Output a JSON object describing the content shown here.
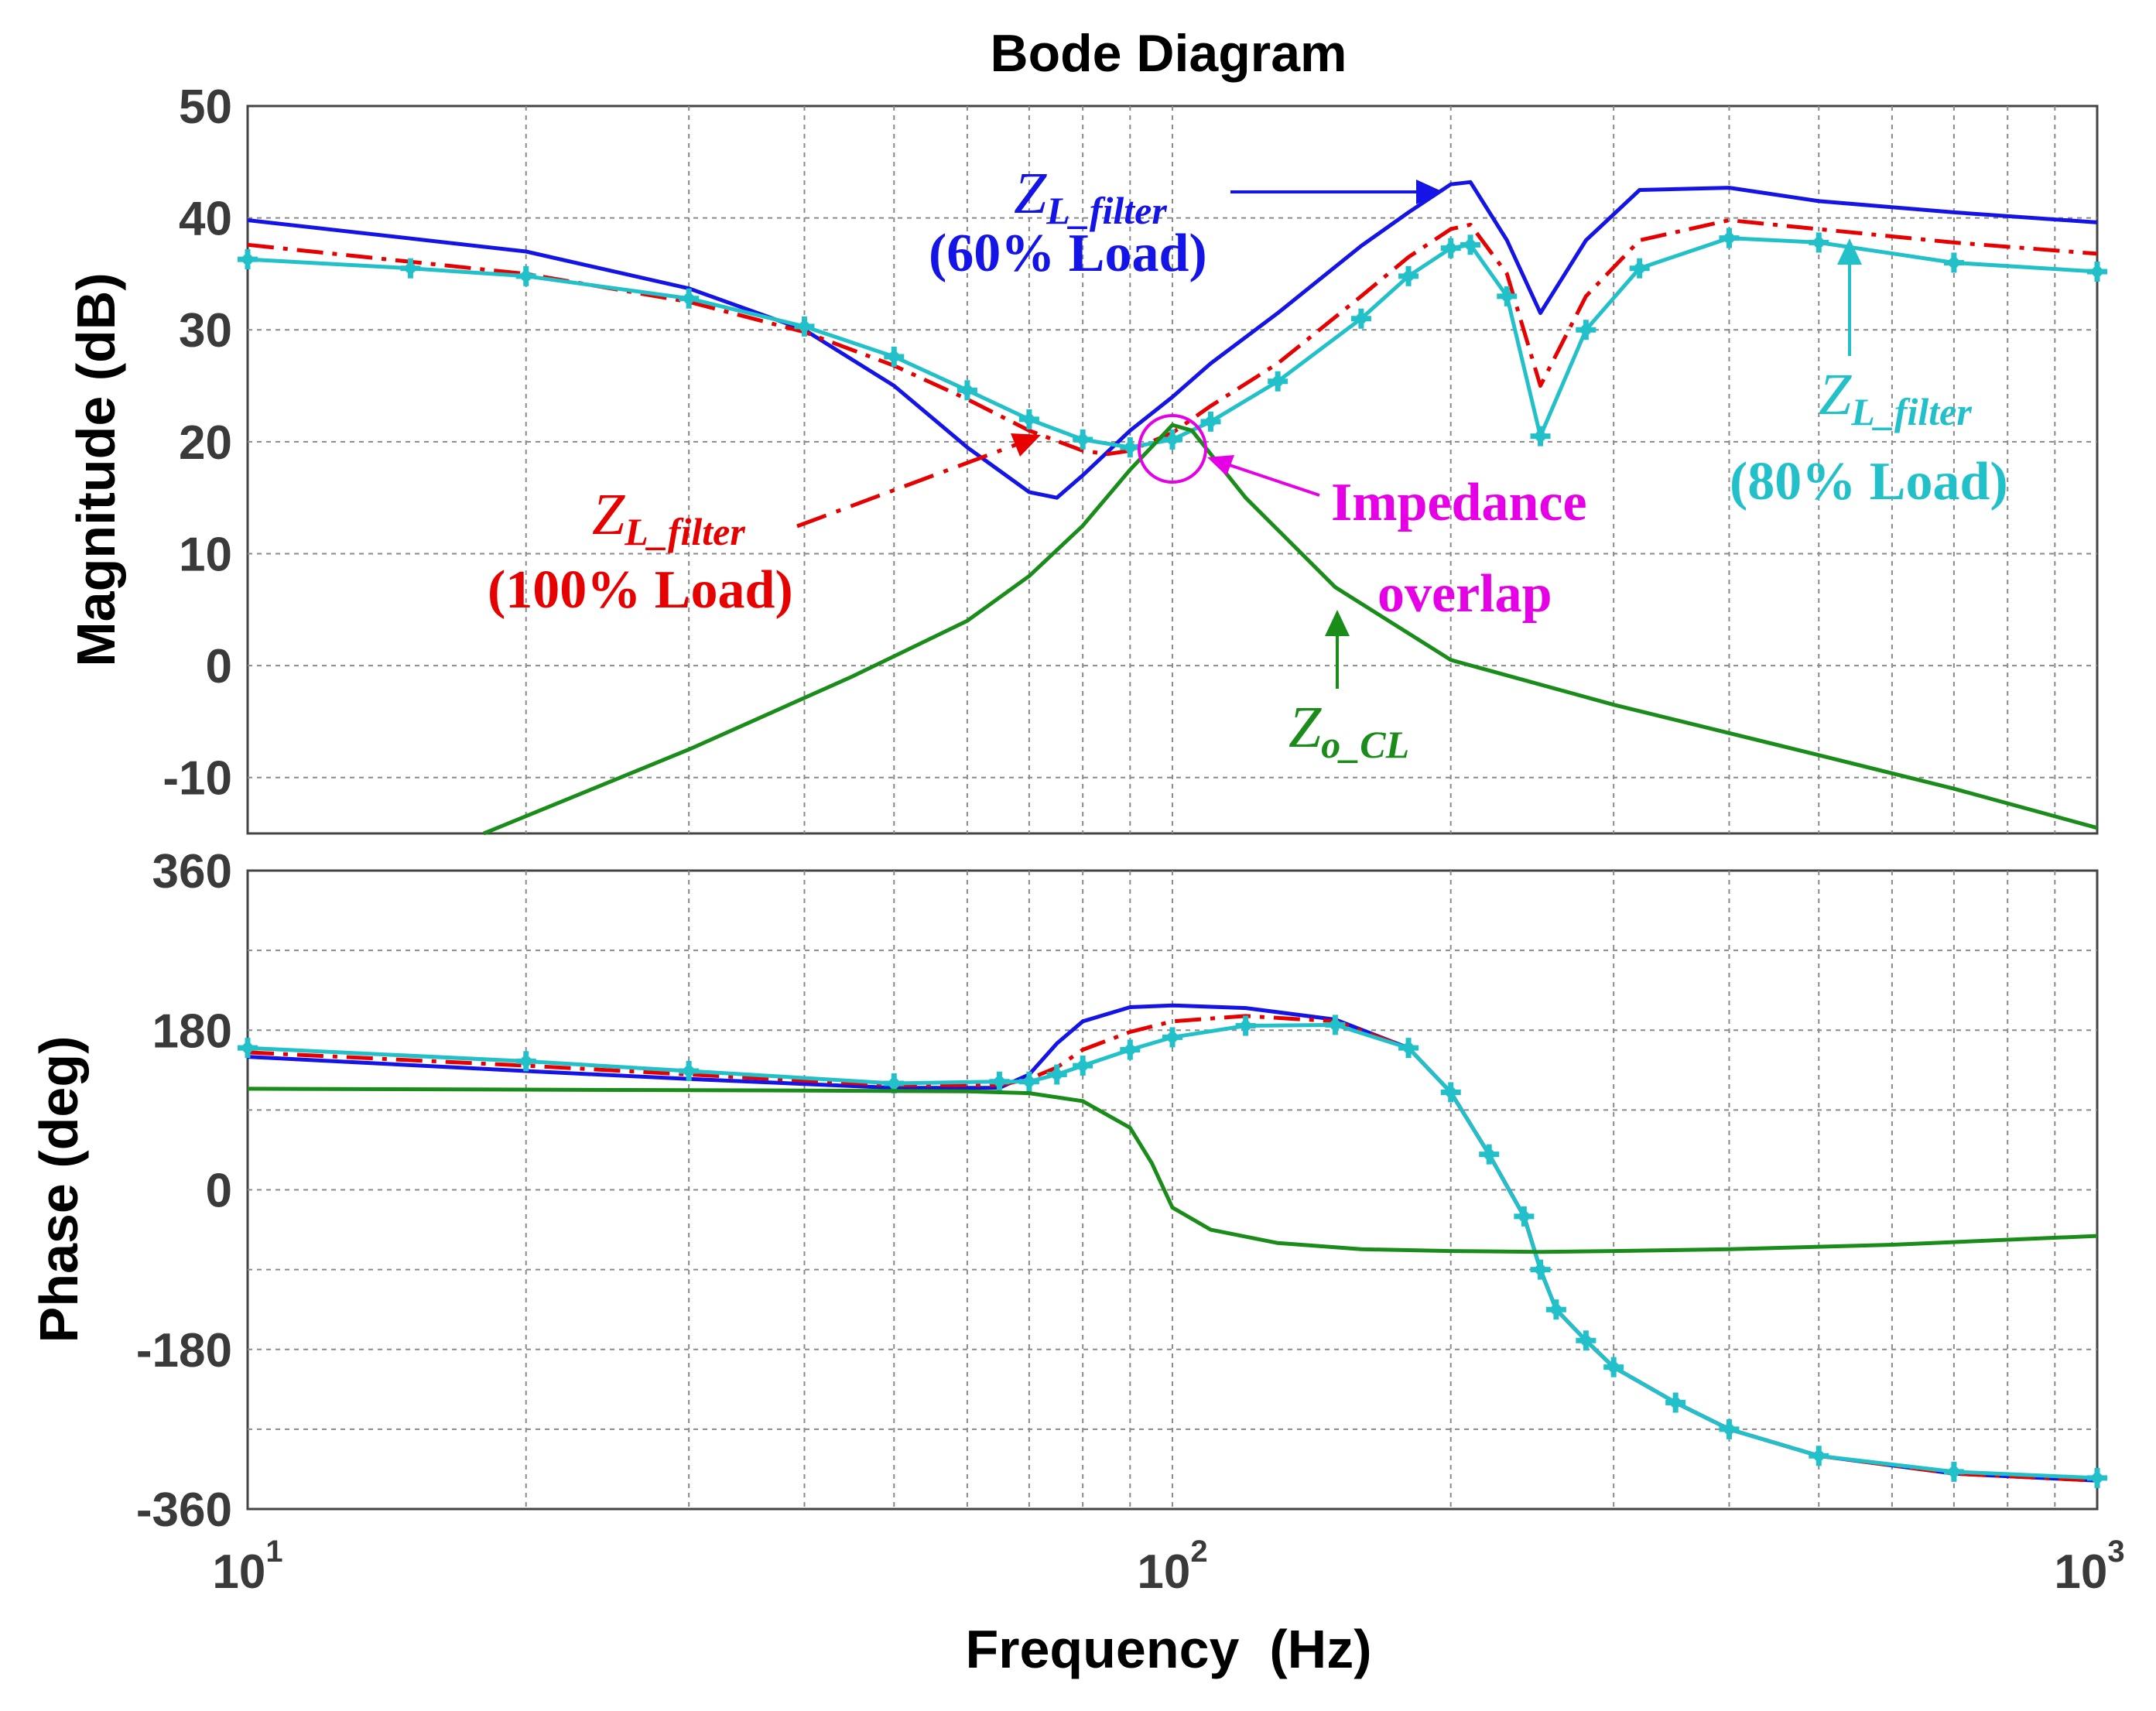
{
  "chart_data": [
    {
      "type": "line",
      "panel": "magnitude",
      "title": "Bode Diagram",
      "xlabel": "",
      "ylabel": "Magnitude (dB)",
      "xscale": "log",
      "xlim": [
        10,
        1000
      ],
      "ylim": [
        -15,
        50
      ],
      "yticks": [
        -10,
        0,
        10,
        20,
        30,
        40,
        50
      ],
      "xticks": [
        10,
        100,
        1000
      ],
      "xtick_labels": [
        {
          "base": "10",
          "exp": "1"
        },
        {
          "base": "10",
          "exp": "2"
        },
        {
          "base": "10",
          "exp": "3"
        }
      ],
      "series": [
        {
          "name": "Z_L_filter (60% Load)",
          "color": "#1414e6",
          "style": "solid",
          "x": [
            10,
            20,
            30,
            40,
            50,
            60,
            70,
            75,
            80,
            90,
            100,
            110,
            130,
            160,
            180,
            200,
            210,
            230,
            250,
            280,
            320,
            400,
            500,
            700,
            1000
          ],
          "y": [
            39.8,
            37.0,
            33.7,
            30.0,
            25.0,
            19.5,
            15.5,
            15.0,
            17.0,
            21.0,
            24.0,
            27.0,
            31.5,
            37.5,
            40.5,
            43.0,
            43.2,
            38.0,
            31.5,
            38.0,
            42.5,
            42.7,
            41.5,
            40.5,
            39.6
          ]
        },
        {
          "name": "Z_L_filter (100% Load)",
          "color": "#e60000",
          "style": "dashdot",
          "x": [
            10,
            20,
            30,
            40,
            50,
            60,
            70,
            80,
            85,
            90,
            100,
            110,
            130,
            160,
            180,
            200,
            210,
            230,
            250,
            280,
            320,
            400,
            500,
            700,
            1000
          ],
          "y": [
            37.6,
            35.0,
            32.5,
            29.8,
            26.8,
            23.8,
            21.0,
            19.2,
            18.9,
            19.2,
            20.8,
            23.2,
            27.0,
            33.0,
            36.5,
            39.0,
            39.4,
            35.0,
            25.0,
            33.0,
            38.0,
            39.8,
            39.0,
            37.8,
            36.8
          ]
        },
        {
          "name": "Z_L_filter (80% Load)",
          "color": "#22c0c8",
          "style": "solid-markers",
          "x": [
            10,
            15,
            20,
            30,
            40,
            50,
            60,
            70,
            80,
            90,
            100,
            110,
            130,
            160,
            180,
            200,
            210,
            230,
            250,
            280,
            320,
            400,
            500,
            700,
            1000
          ],
          "y": [
            36.3,
            35.5,
            34.8,
            32.8,
            30.3,
            27.6,
            24.6,
            22.0,
            20.2,
            19.5,
            20.2,
            21.8,
            25.4,
            31.0,
            34.8,
            37.3,
            37.6,
            33.0,
            20.5,
            30.0,
            35.5,
            38.2,
            37.8,
            36.0,
            35.2
          ]
        },
        {
          "name": "Z_o_CL",
          "color": "#1a8c1a",
          "style": "solid",
          "x": [
            18,
            30,
            45,
            60,
            70,
            80,
            90,
            100,
            105,
            120,
            150,
            200,
            300,
            500,
            700,
            1000
          ],
          "y": [
            -15,
            -7.5,
            -1.0,
            4.0,
            8.0,
            12.5,
            17.5,
            21.5,
            21.0,
            15.0,
            7.0,
            0.5,
            -3.5,
            -8.0,
            -11.0,
            -14.5
          ]
        }
      ],
      "annotations": [
        {
          "sym": "Z",
          "sub": "L_filter",
          "text": "(60% Load)",
          "color": "#1414e6"
        },
        {
          "sym": "Z",
          "sub": "L_filter",
          "text": "(100% Load)",
          "color": "#e60000"
        },
        {
          "sym": "Z",
          "sub": "L_filter",
          "text": "(80% Load)",
          "color": "#22c0c8"
        },
        {
          "sym": "Z",
          "sub": "o_CL",
          "text": "",
          "color": "#1a8c1a"
        },
        {
          "sym": "",
          "sub": "",
          "text": "Impedance overlap",
          "line1": "Impedance",
          "line2": "overlap",
          "color": "#e600e6"
        }
      ]
    },
    {
      "type": "line",
      "panel": "phase",
      "title": "",
      "xlabel": "Frequency  (Hz)",
      "ylabel": "Phase (deg)",
      "xscale": "log",
      "xlim": [
        10,
        1000
      ],
      "ylim": [
        -360,
        360
      ],
      "yticks": [
        -360,
        -180,
        0,
        180,
        360
      ],
      "xticks": [
        10,
        100,
        1000
      ],
      "series": [
        {
          "name": "Z_L_filter (60% Load)",
          "color": "#1414e6",
          "style": "solid",
          "x": [
            10,
            20,
            30,
            50,
            65,
            70,
            75,
            80,
            90,
            100,
            120,
            150,
            180,
            200,
            220,
            240,
            250,
            260,
            280,
            300,
            350,
            400,
            500,
            700,
            1000
          ],
          "y": [
            150,
            134,
            125,
            115,
            115,
            130,
            165,
            190,
            206,
            208,
            205,
            192,
            160,
            110,
            40,
            -30,
            -90,
            -135,
            -170,
            -200,
            -240,
            -270,
            -300,
            -320,
            -328
          ]
        },
        {
          "name": "Z_L_filter (100% Load)",
          "color": "#e60000",
          "style": "dashdot",
          "x": [
            10,
            20,
            30,
            50,
            65,
            70,
            75,
            80,
            90,
            100,
            120,
            150,
            180,
            200,
            220,
            240,
            250,
            260,
            280,
            300,
            350,
            400,
            500,
            700,
            1000
          ],
          "y": [
            155,
            140,
            130,
            118,
            118,
            125,
            138,
            158,
            178,
            190,
            196,
            190,
            160,
            110,
            40,
            -30,
            -90,
            -135,
            -170,
            -200,
            -240,
            -270,
            -300,
            -320,
            -328
          ]
        },
        {
          "name": "Z_L_filter (80% Load)",
          "color": "#22c0c8",
          "style": "solid-markers",
          "x": [
            10,
            20,
            30,
            50,
            65,
            70,
            75,
            80,
            90,
            100,
            120,
            150,
            180,
            200,
            220,
            240,
            250,
            260,
            280,
            300,
            350,
            400,
            500,
            700,
            1000
          ],
          "y": [
            160,
            145,
            134,
            120,
            122,
            122,
            130,
            140,
            158,
            172,
            185,
            186,
            160,
            110,
            40,
            -30,
            -90,
            -135,
            -170,
            -200,
            -240,
            -270,
            -300,
            -318,
            -325
          ]
        },
        {
          "name": "Z_o_CL",
          "color": "#1a8c1a",
          "style": "solid",
          "x": [
            10,
            40,
            60,
            70,
            80,
            90,
            95,
            100,
            110,
            130,
            160,
            200,
            250,
            300,
            400,
            600,
            1000
          ],
          "y": [
            114,
            112,
            111,
            109,
            100,
            70,
            30,
            -20,
            -45,
            -60,
            -67,
            -69,
            -70,
            -69,
            -67,
            -62,
            -52
          ]
        }
      ]
    }
  ]
}
